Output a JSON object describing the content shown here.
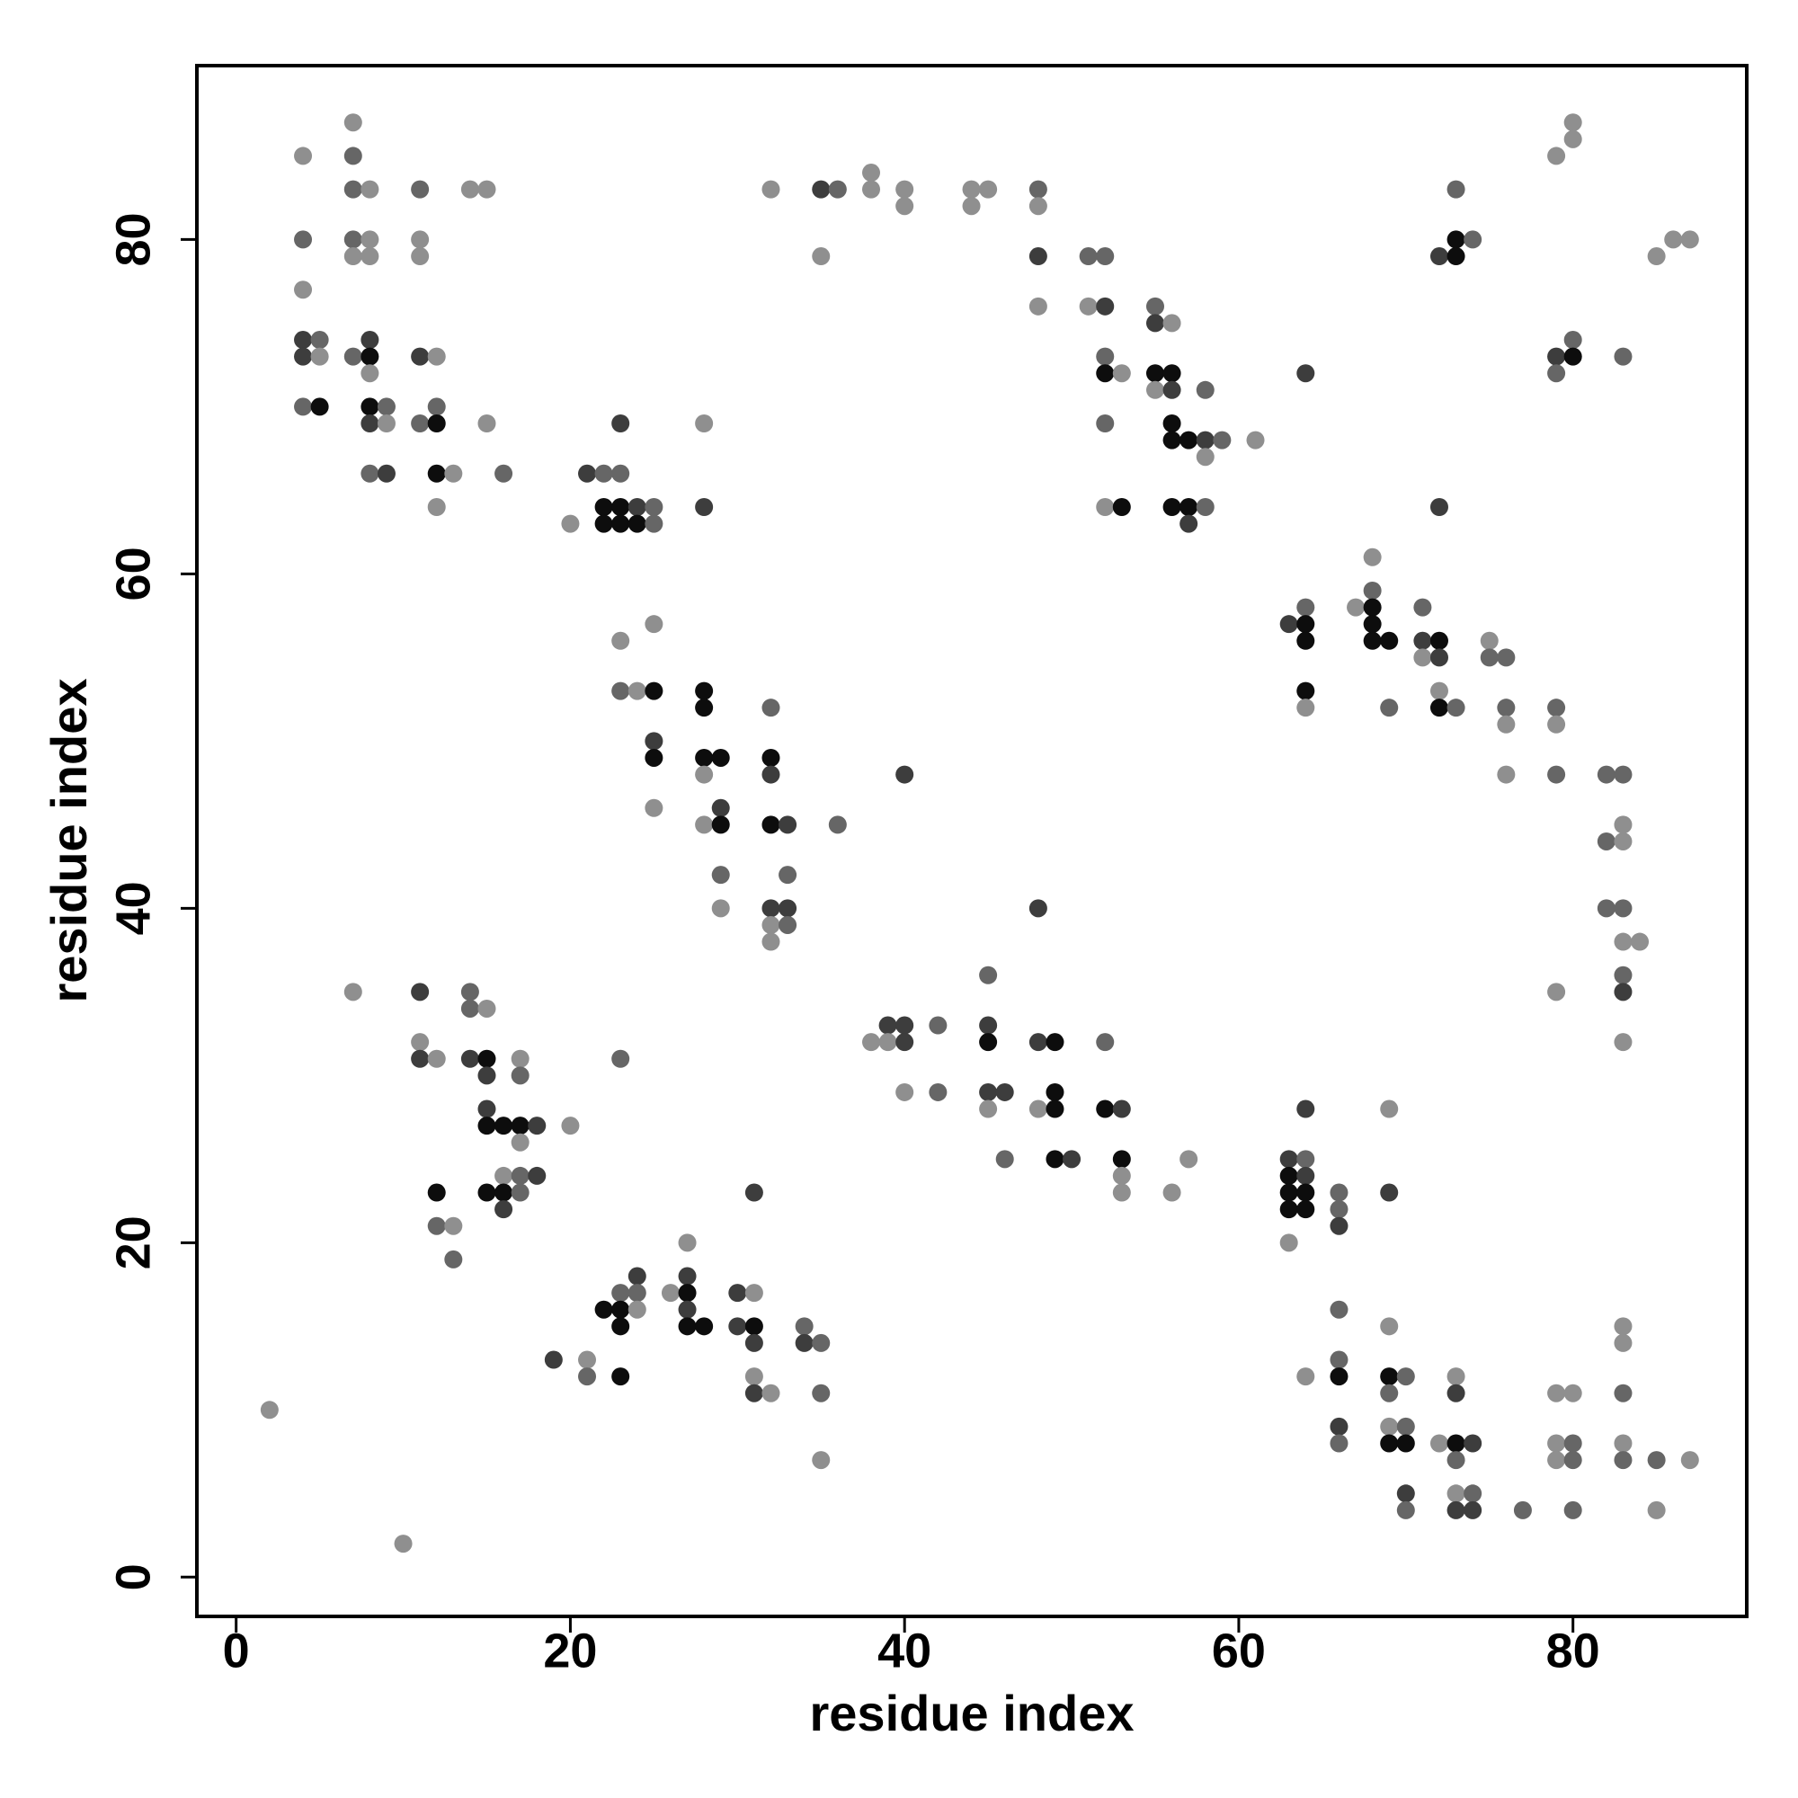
{
  "chart_data": {
    "type": "scatter",
    "x_label": "residue index",
    "y_label": "residue index",
    "xlim": [
      -2.35,
      90.4
    ],
    "ylim": [
      -2.35,
      90.4
    ],
    "xticks": [
      0,
      20,
      40,
      60,
      80
    ],
    "yticks": [
      0,
      20,
      40,
      60,
      80
    ],
    "x": [
      4,
      4,
      4,
      4,
      4,
      4,
      5,
      5,
      5,
      7,
      7,
      7,
      7,
      7,
      7,
      8,
      8,
      8,
      8,
      8,
      8,
      8,
      8,
      8,
      9,
      9,
      9,
      11,
      11,
      11,
      11,
      11,
      12,
      12,
      12,
      12,
      12,
      13,
      14,
      15,
      15,
      16,
      20,
      21,
      22,
      22,
      22,
      23,
      23,
      23,
      23,
      24,
      24,
      25,
      25,
      28,
      28,
      32,
      35,
      35,
      36,
      38,
      38,
      40,
      40,
      44,
      44,
      45,
      48,
      48,
      48,
      48,
      51,
      51,
      52,
      52,
      52,
      52,
      52,
      52,
      53,
      53,
      55,
      55,
      55,
      55,
      56,
      56,
      56,
      56,
      56,
      56,
      57,
      57,
      57,
      58,
      58,
      58,
      58,
      59,
      61,
      64,
      72,
      72,
      73,
      73,
      73,
      74,
      79,
      79,
      79,
      80,
      80,
      80,
      80,
      83,
      85,
      86,
      87,
      63,
      64,
      64,
      64,
      64,
      64,
      67,
      68,
      68,
      68,
      68,
      68,
      69,
      69,
      71,
      71,
      71,
      72,
      72,
      72,
      72,
      73,
      75,
      75,
      76,
      76,
      76,
      76,
      79,
      79,
      79,
      82,
      82,
      82,
      83,
      83,
      83,
      83,
      83,
      83,
      83,
      83,
      84,
      79,
      23,
      23,
      24,
      25,
      25,
      25,
      25,
      25,
      28,
      28,
      28,
      28,
      28,
      29,
      29,
      29,
      29,
      29,
      32,
      32,
      32,
      32,
      32,
      32,
      32,
      33,
      33,
      33,
      33,
      36,
      40,
      38,
      39,
      39,
      40,
      40,
      40,
      42,
      42,
      45,
      45,
      45,
      45,
      45,
      46,
      46,
      48,
      48,
      48,
      49,
      49,
      49,
      49,
      50,
      52,
      52,
      53,
      53,
      53,
      53,
      56,
      57,
      63,
      63,
      63,
      63,
      63,
      64,
      64,
      64,
      64,
      64,
      66,
      66,
      66,
      69,
      69,
      7,
      11,
      11,
      11,
      12,
      12,
      12,
      13,
      13,
      14,
      14,
      14,
      15,
      15,
      15,
      15,
      15,
      15,
      16,
      16,
      16,
      16,
      17,
      17,
      17,
      17,
      17,
      17,
      18,
      18,
      20,
      23,
      19,
      21,
      21,
      22,
      23,
      23,
      23,
      23,
      24,
      24,
      24,
      26,
      27,
      27,
      27,
      27,
      27,
      28,
      30,
      30,
      31,
      31,
      31,
      31,
      31,
      31,
      32,
      34,
      34,
      35,
      35,
      35,
      2,
      10,
      64,
      66,
      66,
      66,
      66,
      66,
      69,
      69,
      69,
      69,
      69,
      70,
      70,
      70,
      70,
      70,
      72,
      73,
      73,
      73,
      73,
      73,
      73,
      74,
      74,
      74,
      77,
      79,
      79,
      79,
      80,
      80,
      80,
      80,
      83,
      83,
      83,
      83,
      83,
      85,
      85,
      87
    ],
    "y": [
      85,
      80,
      77,
      74,
      73,
      70,
      74,
      73,
      70,
      87,
      85,
      83,
      80,
      79,
      73,
      83,
      80,
      79,
      74,
      73,
      72,
      70,
      69,
      66,
      70,
      69,
      66,
      83,
      80,
      79,
      73,
      69,
      73,
      70,
      69,
      66,
      64,
      66,
      83,
      83,
      69,
      66,
      63,
      66,
      66,
      64,
      63,
      69,
      66,
      64,
      63,
      64,
      63,
      64,
      63,
      69,
      64,
      83,
      83,
      79,
      83,
      84,
      83,
      83,
      82,
      83,
      82,
      83,
      83,
      82,
      79,
      76,
      79,
      76,
      79,
      76,
      73,
      72,
      69,
      64,
      72,
      64,
      76,
      75,
      72,
      71,
      75,
      72,
      71,
      69,
      68,
      64,
      68,
      64,
      63,
      71,
      68,
      67,
      64,
      68,
      68,
      72,
      79,
      64,
      83,
      80,
      79,
      80,
      85,
      73,
      72,
      87,
      86,
      74,
      73,
      73,
      79,
      80,
      80,
      57,
      58,
      57,
      56,
      53,
      52,
      58,
      61,
      59,
      58,
      57,
      56,
      56,
      52,
      58,
      56,
      55,
      56,
      55,
      53,
      52,
      52,
      56,
      55,
      55,
      52,
      51,
      48,
      52,
      51,
      48,
      48,
      44,
      40,
      48,
      45,
      44,
      40,
      38,
      36,
      35,
      32,
      38,
      35,
      56,
      53,
      53,
      57,
      53,
      50,
      49,
      46,
      53,
      52,
      49,
      48,
      45,
      49,
      46,
      45,
      42,
      40,
      52,
      49,
      48,
      45,
      40,
      39,
      38,
      45,
      42,
      40,
      39,
      45,
      48,
      32,
      33,
      32,
      33,
      32,
      29,
      33,
      29,
      36,
      33,
      32,
      29,
      28,
      29,
      25,
      40,
      32,
      28,
      32,
      29,
      28,
      25,
      25,
      32,
      28,
      28,
      25,
      24,
      23,
      23,
      25,
      25,
      24,
      23,
      22,
      20,
      28,
      25,
      24,
      23,
      22,
      23,
      22,
      21,
      28,
      23,
      35,
      35,
      32,
      31,
      31,
      23,
      21,
      21,
      19,
      35,
      34,
      31,
      34,
      31,
      30,
      28,
      27,
      23,
      27,
      24,
      23,
      22,
      31,
      30,
      27,
      26,
      24,
      23,
      27,
      24,
      27,
      31,
      13,
      13,
      12,
      16,
      17,
      16,
      15,
      12,
      18,
      17,
      16,
      17,
      20,
      18,
      17,
      16,
      15,
      15,
      17,
      15,
      23,
      17,
      15,
      14,
      12,
      11,
      11,
      15,
      14,
      14,
      11,
      7,
      10,
      2,
      12,
      16,
      13,
      12,
      9,
      8,
      15,
      12,
      11,
      9,
      8,
      12,
      9,
      8,
      5,
      4,
      8,
      12,
      11,
      8,
      7,
      5,
      4,
      8,
      5,
      4,
      4,
      11,
      8,
      7,
      11,
      8,
      7,
      4,
      15,
      14,
      11,
      8,
      7,
      7,
      4,
      7
    ],
    "colors": [
      "#8f8f8f",
      "#666666",
      "#8f8f8f",
      "#3d3d3d",
      "#3d3d3d",
      "#666666",
      "#666666",
      "#8f8f8f",
      "#0d0d0d",
      "#8f8f8f",
      "#666666",
      "#666666",
      "#666666",
      "#8f8f8f",
      "#666666",
      "#8f8f8f",
      "#8f8f8f",
      "#8f8f8f",
      "#3d3d3d",
      "#0d0d0d",
      "#8f8f8f",
      "#0d0d0d",
      "#3d3d3d",
      "#666666",
      "#666666",
      "#8f8f8f",
      "#3d3d3d",
      "#666666",
      "#8f8f8f",
      "#8f8f8f",
      "#3d3d3d",
      "#666666",
      "#8f8f8f",
      "#666666",
      "#0d0d0d",
      "#0d0d0d",
      "#8f8f8f",
      "#8f8f8f",
      "#8f8f8f",
      "#8f8f8f",
      "#8f8f8f",
      "#666666",
      "#8f8f8f",
      "#3d3d3d",
      "#666666",
      "#0d0d0d",
      "#0d0d0d",
      "#3d3d3d",
      "#666666",
      "#0d0d0d",
      "#0d0d0d",
      "#3d3d3d",
      "#0d0d0d",
      "#666666",
      "#666666",
      "#8f8f8f",
      "#3d3d3d",
      "#8f8f8f",
      "#3d3d3d",
      "#8f8f8f",
      "#666666",
      "#8f8f8f",
      "#8f8f8f",
      "#8f8f8f",
      "#8f8f8f",
      "#8f8f8f",
      "#8f8f8f",
      "#8f8f8f",
      "#666666",
      "#8f8f8f",
      "#3d3d3d",
      "#8f8f8f",
      "#666666",
      "#8f8f8f",
      "#666666",
      "#3d3d3d",
      "#666666",
      "#0d0d0d",
      "#666666",
      "#8f8f8f",
      "#8f8f8f",
      "#0d0d0d",
      "#666666",
      "#3d3d3d",
      "#0d0d0d",
      "#8f8f8f",
      "#8f8f8f",
      "#0d0d0d",
      "#3d3d3d",
      "#0d0d0d",
      "#0d0d0d",
      "#0d0d0d",
      "#0d0d0d",
      "#0d0d0d",
      "#3d3d3d",
      "#666666",
      "#3d3d3d",
      "#8f8f8f",
      "#666666",
      "#666666",
      "#8f8f8f",
      "#3d3d3d",
      "#3d3d3d",
      "#3d3d3d",
      "#666666",
      "#0d0d0d",
      "#0d0d0d",
      "#666666",
      "#8f8f8f",
      "#3d3d3d",
      "#666666",
      "#8f8f8f",
      "#8f8f8f",
      "#666666",
      "#0d0d0d",
      "#666666",
      "#8f8f8f",
      "#8f8f8f",
      "#8f8f8f",
      "#3d3d3d",
      "#666666",
      "#0d0d0d",
      "#0d0d0d",
      "#0d0d0d",
      "#8f8f8f",
      "#8f8f8f",
      "#8f8f8f",
      "#666666",
      "#0d0d0d",
      "#0d0d0d",
      "#0d0d0d",
      "#0d0d0d",
      "#666666",
      "#666666",
      "#3d3d3d",
      "#8f8f8f",
      "#0d0d0d",
      "#3d3d3d",
      "#8f8f8f",
      "#0d0d0d",
      "#666666",
      "#8f8f8f",
      "#666666",
      "#666666",
      "#666666",
      "#8f8f8f",
      "#8f8f8f",
      "#666666",
      "#8f8f8f",
      "#666666",
      "#666666",
      "#666666",
      "#666666",
      "#666666",
      "#8f8f8f",
      "#8f8f8f",
      "#666666",
      "#8f8f8f",
      "#666666",
      "#3d3d3d",
      "#8f8f8f",
      "#8f8f8f",
      "#8f8f8f",
      "#8f8f8f",
      "#666666",
      "#8f8f8f",
      "#8f8f8f",
      "#0d0d0d",
      "#3d3d3d",
      "#0d0d0d",
      "#8f8f8f",
      "#0d0d0d",
      "#0d0d0d",
      "#0d0d0d",
      "#8f8f8f",
      "#8f8f8f",
      "#0d0d0d",
      "#3d3d3d",
      "#0d0d0d",
      "#666666",
      "#8f8f8f",
      "#666666",
      "#0d0d0d",
      "#3d3d3d",
      "#0d0d0d",
      "#3d3d3d",
      "#8f8f8f",
      "#8f8f8f",
      "#3d3d3d",
      "#666666",
      "#3d3d3d",
      "#666666",
      "#666666",
      "#3d3d3d",
      "#8f8f8f",
      "#3d3d3d",
      "#8f8f8f",
      "#3d3d3d",
      "#3d3d3d",
      "#8f8f8f",
      "#666666",
      "#666666",
      "#666666",
      "#3d3d3d",
      "#0d0d0d",
      "#3d3d3d",
      "#8f8f8f",
      "#3d3d3d",
      "#666666",
      "#3d3d3d",
      "#3d3d3d",
      "#8f8f8f",
      "#0d0d0d",
      "#0d0d0d",
      "#0d0d0d",
      "#0d0d0d",
      "#3d3d3d",
      "#666666",
      "#0d0d0d",
      "#3d3d3d",
      "#0d0d0d",
      "#8f8f8f",
      "#8f8f8f",
      "#8f8f8f",
      "#8f8f8f",
      "#3d3d3d",
      "#0d0d0d",
      "#0d0d0d",
      "#0d0d0d",
      "#8f8f8f",
      "#3d3d3d",
      "#666666",
      "#3d3d3d",
      "#0d0d0d",
      "#0d0d0d",
      "#666666",
      "#666666",
      "#3d3d3d",
      "#8f8f8f",
      "#3d3d3d",
      "#8f8f8f",
      "#3d3d3d",
      "#8f8f8f",
      "#3d3d3d",
      "#8f8f8f",
      "#0d0d0d",
      "#666666",
      "#8f8f8f",
      "#666666",
      "#666666",
      "#666666",
      "#3d3d3d",
      "#8f8f8f",
      "#0d0d0d",
      "#3d3d3d",
      "#3d3d3d",
      "#0d0d0d",
      "#0d0d0d",
      "#0d0d0d",
      "#8f8f8f",
      "#0d0d0d",
      "#3d3d3d",
      "#8f8f8f",
      "#666666",
      "#0d0d0d",
      "#8f8f8f",
      "#666666",
      "#666666",
      "#3d3d3d",
      "#3d3d3d",
      "#8f8f8f",
      "#666666",
      "#3d3d3d",
      "#8f8f8f",
      "#666666",
      "#0d0d0d",
      "#666666",
      "#0d0d0d",
      "#0d0d0d",
      "#0d0d0d",
      "#3d3d3d",
      "#666666",
      "#8f8f8f",
      "#8f8f8f",
      "#8f8f8f",
      "#3d3d3d",
      "#0d0d0d",
      "#3d3d3d",
      "#0d0d0d",
      "#0d0d0d",
      "#3d3d3d",
      "#3d3d3d",
      "#3d3d3d",
      "#8f8f8f",
      "#0d0d0d",
      "#3d3d3d",
      "#8f8f8f",
      "#3d3d3d",
      "#8f8f8f",
      "#666666",
      "#3d3d3d",
      "#666666",
      "#666666",
      "#8f8f8f",
      "#8f8f8f",
      "#8f8f8f",
      "#8f8f8f",
      "#666666",
      "#666666",
      "#0d0d0d",
      "#3d3d3d",
      "#666666",
      "#8f8f8f",
      "#0d0d0d",
      "#666666",
      "#8f8f8f",
      "#0d0d0d",
      "#666666",
      "#666666",
      "#0d0d0d",
      "#3d3d3d",
      "#666666",
      "#8f8f8f",
      "#8f8f8f",
      "#3d3d3d",
      "#0d0d0d",
      "#666666",
      "#8f8f8f",
      "#3d3d3d",
      "#3d3d3d",
      "#666666",
      "#3d3d3d",
      "#666666",
      "#8f8f8f",
      "#8f8f8f",
      "#8f8f8f",
      "#8f8f8f",
      "#666666",
      "#666666",
      "#666666",
      "#8f8f8f",
      "#8f8f8f",
      "#666666",
      "#8f8f8f",
      "#666666",
      "#666666",
      "#8f8f8f",
      "#8f8f8f"
    ]
  }
}
